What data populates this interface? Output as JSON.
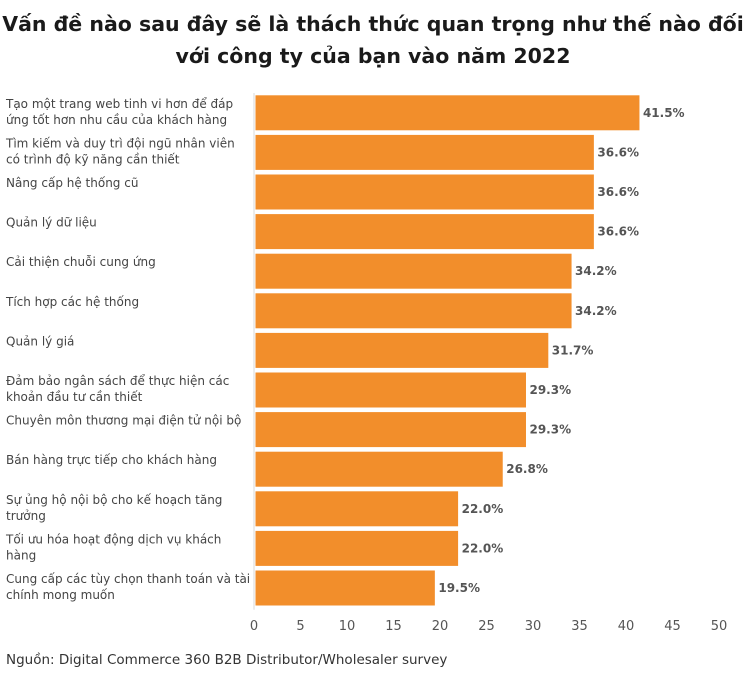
{
  "title_line1": "Vấn đề nào sau đây sẽ là thách thức quan trọng như thế nào đối",
  "title_line2": "với công ty của bạn vào năm 2022",
  "source": "Nguồn: Digital Commerce 360 B2B Distributor/Wholesaler survey",
  "colors": {
    "bar": "#F28E2B",
    "bar_border": "#ffffff",
    "axis": "#d9d9d9"
  },
  "chart_data": {
    "type": "bar",
    "orientation": "horizontal",
    "categories": [
      [
        "Tạo một trang web tinh vi hơn để đáp",
        "ứng tốt hơn nhu cầu của khách hàng"
      ],
      [
        "Tìm kiếm và duy trì đội ngũ nhân viên",
        "có trình độ kỹ năng cần thiết"
      ],
      [
        "Nâng cấp hệ thống cũ"
      ],
      [
        "Quản lý dữ liệu"
      ],
      [
        "Cải thiện chuỗi cung ứng"
      ],
      [
        "Tích hợp các hệ thống"
      ],
      [
        "Quản lý giá"
      ],
      [
        "Đảm bảo ngân sách để thực hiện các",
        "khoản đầu tư cần thiết"
      ],
      [
        "Chuyên môn thương mại điện tử nội bộ"
      ],
      [
        "Bán hàng trực tiếp cho khách hàng"
      ],
      [
        "Sự ủng hộ nội bộ cho kế hoạch tăng",
        "trưởng"
      ],
      [
        "Tối ưu hóa hoạt động dịch vụ khách",
        "hàng"
      ],
      [
        "Cung cấp các tùy chọn thanh toán và tài",
        "chính mong muốn"
      ]
    ],
    "values": [
      41.5,
      36.6,
      36.6,
      36.6,
      34.2,
      34.2,
      31.7,
      29.3,
      29.3,
      26.8,
      22.0,
      22.0,
      19.5
    ],
    "value_labels": [
      "41.5%",
      "36.6%",
      "36.6%",
      "36.6%",
      "34.2%",
      "34.2%",
      "31.7%",
      "29.3%",
      "29.3%",
      "26.8%",
      "22.0%",
      "22.0%",
      "19.5%"
    ],
    "xlim": [
      0,
      50
    ],
    "xticks": [
      0,
      5,
      10,
      15,
      20,
      25,
      30,
      35,
      40,
      45,
      50
    ],
    "grid": false,
    "legend": "none"
  }
}
